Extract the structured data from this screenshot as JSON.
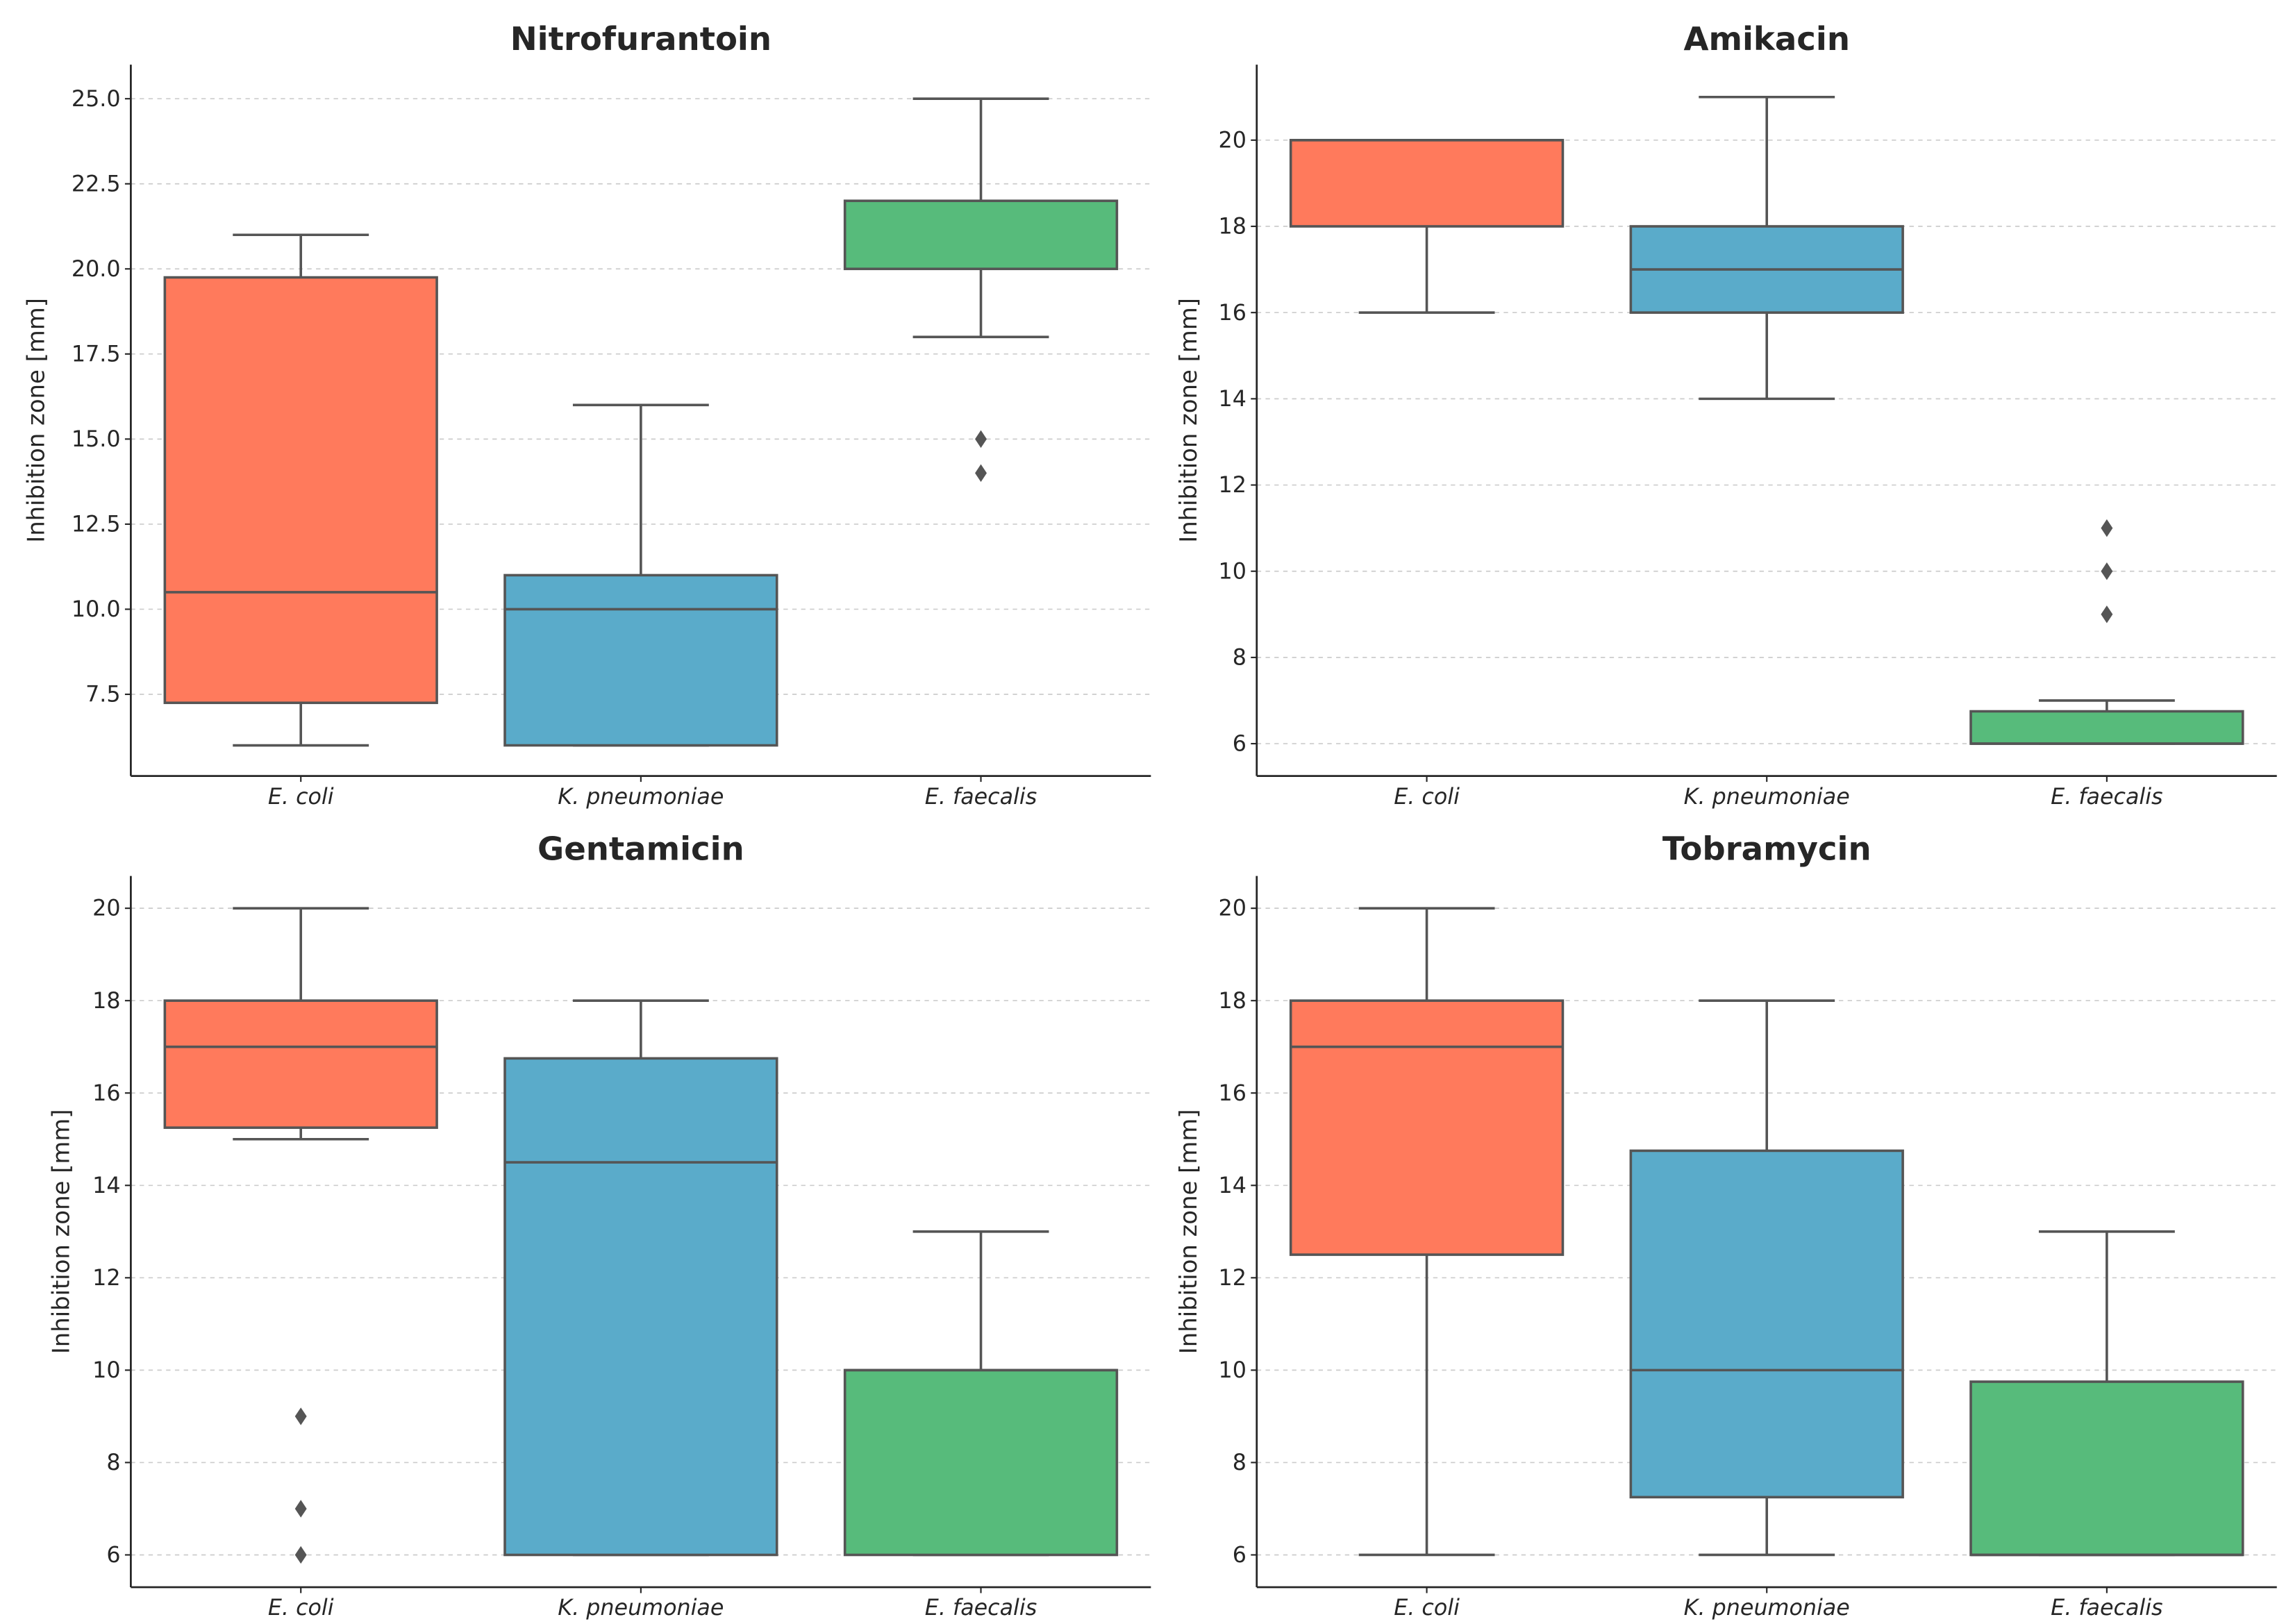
{
  "colors": {
    "E. coli": "#ff7a5c",
    "K. pneumoniae": "#5aabca",
    "E. faecalis": "#57bb7b",
    "line": "#555555",
    "axis": "#262626",
    "grid": "#cccccc"
  },
  "chart_data": [
    {
      "type": "box",
      "title": "Nitrofurantoin",
      "ylabel": "Inhibition zone [mm]",
      "ylim": [
        5.1,
        26.0
      ],
      "yticks": [
        7.5,
        10.0,
        12.5,
        15.0,
        17.5,
        20.0,
        22.5,
        25.0
      ],
      "ytick_labels": [
        "7.5",
        "10.0",
        "12.5",
        "15.0",
        "17.5",
        "20.0",
        "22.5",
        "25.0"
      ],
      "grid": "y-dashed",
      "categories": [
        "E. coli",
        "K. pneumoniae",
        "E. faecalis"
      ],
      "boxes": [
        {
          "name": "E. coli",
          "whisker_low": 6,
          "q1": 7.25,
          "median": 10.5,
          "q3": 19.75,
          "whisker_high": 21,
          "outliers": []
        },
        {
          "name": "K. pneumoniae",
          "whisker_low": 6,
          "q1": 6,
          "median": 10,
          "q3": 11,
          "whisker_high": 16,
          "outliers": []
        },
        {
          "name": "E. faecalis",
          "whisker_low": 18,
          "q1": 20,
          "median": 22,
          "q3": 22,
          "whisker_high": 25,
          "outliers": [
            15,
            14
          ]
        }
      ]
    },
    {
      "type": "box",
      "title": "Amikacin",
      "ylabel": "Inhibition zone [mm]",
      "ylim": [
        5.25,
        21.75
      ],
      "yticks": [
        6,
        8,
        10,
        12,
        14,
        16,
        18,
        20
      ],
      "ytick_labels": [
        "6",
        "8",
        "10",
        "12",
        "14",
        "16",
        "18",
        "20"
      ],
      "grid": "y-dashed",
      "categories": [
        "E. coli",
        "K. pneumoniae",
        "E. faecalis"
      ],
      "boxes": [
        {
          "name": "E. coli",
          "whisker_low": 16,
          "q1": 18,
          "median": 20,
          "q3": 20,
          "whisker_high": 20,
          "outliers": []
        },
        {
          "name": "K. pneumoniae",
          "whisker_low": 14,
          "q1": 16,
          "median": 17,
          "q3": 18,
          "whisker_high": 21,
          "outliers": []
        },
        {
          "name": "E. faecalis",
          "whisker_low": 6,
          "q1": 6,
          "median": 6,
          "q3": 6.75,
          "whisker_high": 7,
          "outliers": [
            11,
            10,
            9
          ]
        }
      ]
    },
    {
      "type": "box",
      "title": "Gentamicin",
      "ylabel": "Inhibition zone [mm]",
      "ylim": [
        5.3,
        20.7
      ],
      "yticks": [
        6,
        8,
        10,
        12,
        14,
        16,
        18,
        20
      ],
      "ytick_labels": [
        "6",
        "8",
        "10",
        "12",
        "14",
        "16",
        "18",
        "20"
      ],
      "grid": "y-dashed",
      "categories": [
        "E. coli",
        "K. pneumoniae",
        "E. faecalis"
      ],
      "boxes": [
        {
          "name": "E. coli",
          "whisker_low": 15,
          "q1": 15.25,
          "median": 17,
          "q3": 18,
          "whisker_high": 20,
          "outliers": [
            9,
            7,
            6
          ]
        },
        {
          "name": "K. pneumoniae",
          "whisker_low": 6,
          "q1": 6,
          "median": 14.5,
          "q3": 16.75,
          "whisker_high": 18,
          "outliers": []
        },
        {
          "name": "E. faecalis",
          "whisker_low": 6,
          "q1": 6,
          "median": 10,
          "q3": 10,
          "whisker_high": 13,
          "outliers": []
        }
      ]
    },
    {
      "type": "box",
      "title": "Tobramycin",
      "ylabel": "Inhibition zone [mm]",
      "ylim": [
        5.3,
        20.7
      ],
      "yticks": [
        6,
        8,
        10,
        12,
        14,
        16,
        18,
        20
      ],
      "ytick_labels": [
        "6",
        "8",
        "10",
        "12",
        "14",
        "16",
        "18",
        "20"
      ],
      "grid": "y-dashed",
      "categories": [
        "E. coli",
        "K. pneumoniae",
        "E. faecalis"
      ],
      "boxes": [
        {
          "name": "E. coli",
          "whisker_low": 6,
          "q1": 12.5,
          "median": 17,
          "q3": 18,
          "whisker_high": 20,
          "outliers": []
        },
        {
          "name": "K. pneumoniae",
          "whisker_low": 6,
          "q1": 7.25,
          "median": 10,
          "q3": 14.75,
          "whisker_high": 18,
          "outliers": []
        },
        {
          "name": "E. faecalis",
          "whisker_low": 6,
          "q1": 6,
          "median": 6,
          "q3": 9.75,
          "whisker_high": 13,
          "outliers": []
        }
      ]
    }
  ]
}
